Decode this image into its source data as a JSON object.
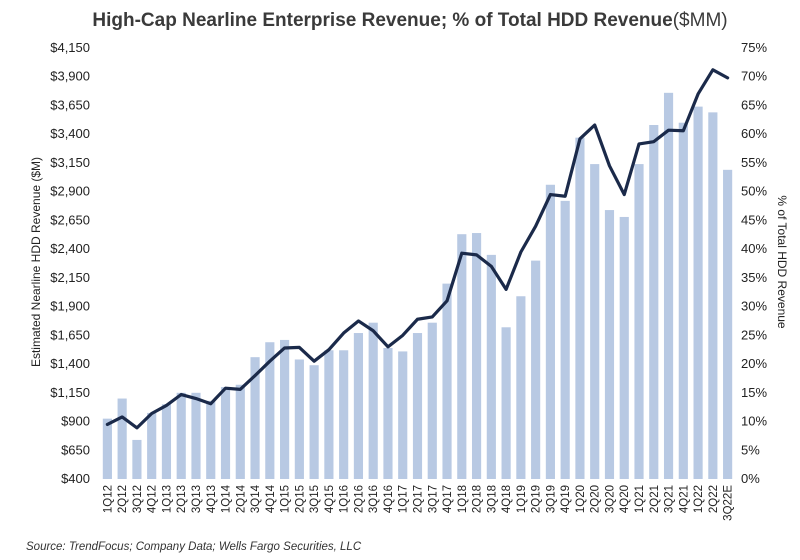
{
  "chart_data": {
    "type": "bar",
    "title": "High-Cap Nearline Enterprise Revenue; %  of Total HDD Revenue",
    "title_unit": "($MM)",
    "ylabel": "Estimated Nearline HDD Revenue ($M)",
    "y2label": "% of Total HDD Revenue",
    "ylim": [
      400,
      4150
    ],
    "y2lim": [
      0,
      75
    ],
    "y_ticks": [
      "$400",
      "$650",
      "$900",
      "$1,150",
      "$1,400",
      "$1,650",
      "$1,900",
      "$2,150",
      "$2,400",
      "$2,650",
      "$2,900",
      "$3,150",
      "$3,400",
      "$3,650",
      "$3,900",
      "$4,150"
    ],
    "y2_ticks": [
      "0%",
      "5%",
      "10%",
      "15%",
      "20%",
      "25%",
      "30%",
      "35%",
      "40%",
      "45%",
      "50%",
      "55%",
      "60%",
      "65%",
      "70%",
      "75%"
    ],
    "grid": false,
    "categories": [
      "1Q12",
      "2Q12",
      "3Q12",
      "4Q12",
      "1Q13",
      "2Q13",
      "3Q13",
      "4Q13",
      "1Q14",
      "2Q14",
      "3Q14",
      "4Q14",
      "1Q15",
      "2Q15",
      "3Q15",
      "4Q15",
      "1Q16",
      "2Q16",
      "3Q16",
      "4Q16",
      "1Q17",
      "2Q17",
      "3Q17",
      "4Q17",
      "1Q18",
      "2Q18",
      "3Q18",
      "4Q18",
      "1Q19",
      "2Q19",
      "3Q19",
      "4Q19",
      "1Q20",
      "2Q20",
      "3Q20",
      "4Q20",
      "1Q21",
      "2Q21",
      "3Q21",
      "4Q21",
      "1Q22",
      "2Q22",
      "3Q22E"
    ],
    "series": [
      {
        "type": "bar",
        "axis": "left",
        "values": [
          925,
          1100,
          740,
          975,
          1050,
          1150,
          1150,
          1080,
          1200,
          1220,
          1460,
          1590,
          1610,
          1440,
          1390,
          1520,
          1520,
          1670,
          1760,
          1540,
          1510,
          1670,
          1760,
          2100,
          2530,
          2540,
          2350,
          1720,
          1990,
          2300,
          2960,
          2820,
          3370,
          3140,
          2740,
          2680,
          3140,
          3480,
          3760,
          3500,
          3640,
          3590,
          3090
        ]
      },
      {
        "type": "line",
        "axis": "right",
        "values": [
          9.5,
          10.8,
          8.9,
          11.4,
          12.8,
          14.7,
          14.0,
          13.1,
          15.8,
          15.6,
          18.0,
          20.5,
          22.8,
          22.9,
          20.5,
          22.5,
          25.4,
          27.5,
          25.8,
          23.0,
          25.0,
          27.8,
          28.2,
          31.0,
          39.3,
          39.0,
          37.0,
          33.0,
          39.5,
          44.0,
          49.5,
          49.2,
          59.2,
          61.6,
          54.5,
          49.5,
          58.3,
          58.7,
          60.7,
          60.6,
          67.0,
          71.2,
          69.8
        ]
      }
    ],
    "colors": {
      "bar": "#b8c9e3",
      "line": "#1b2a4a"
    }
  },
  "source_text": "Source:  TrendFocus; Company Data; Wells Fargo Securities, LLC"
}
